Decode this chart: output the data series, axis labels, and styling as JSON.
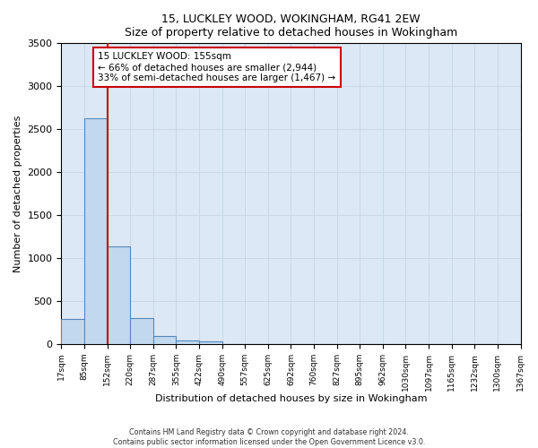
{
  "title1": "15, LUCKLEY WOOD, WOKINGHAM, RG41 2EW",
  "title2": "Size of property relative to detached houses in Wokingham",
  "xlabel": "Distribution of detached houses by size in Wokingham",
  "ylabel": "Number of detached properties",
  "annotation_title": "15 LUCKLEY WOOD: 155sqm",
  "annotation_line1": "← 66% of detached houses are smaller (2,944)",
  "annotation_line2": "33% of semi-detached houses are larger (1,467) →",
  "vline_bin_index": 2,
  "bar_values": [
    290,
    2630,
    1140,
    300,
    95,
    45,
    35,
    0,
    0,
    0,
    0,
    0,
    0,
    0,
    0,
    0,
    0,
    0,
    0
  ],
  "bin_labels": [
    "17sqm",
    "85sqm",
    "152sqm",
    "220sqm",
    "287sqm",
    "355sqm",
    "422sqm",
    "490sqm",
    "557sqm",
    "625sqm",
    "692sqm",
    "760sqm",
    "827sqm",
    "895sqm",
    "962sqm",
    "1030sqm",
    "1097sqm",
    "1165sqm",
    "1232sqm",
    "1300sqm",
    "1367sqm"
  ],
  "bar_color": "#c2d8ee",
  "bar_edge_color": "#5588bb",
  "vline_color": "#cc0000",
  "grid_color": "#c8d8e8",
  "background_color": "#dce8f5",
  "ylim": [
    0,
    3500
  ],
  "yticks": [
    0,
    500,
    1000,
    1500,
    2000,
    2500,
    3000,
    3500
  ],
  "footnote1": "Contains HM Land Registry data © Crown copyright and database right 2024.",
  "footnote2": "Contains public sector information licensed under the Open Government Licence v3.0."
}
